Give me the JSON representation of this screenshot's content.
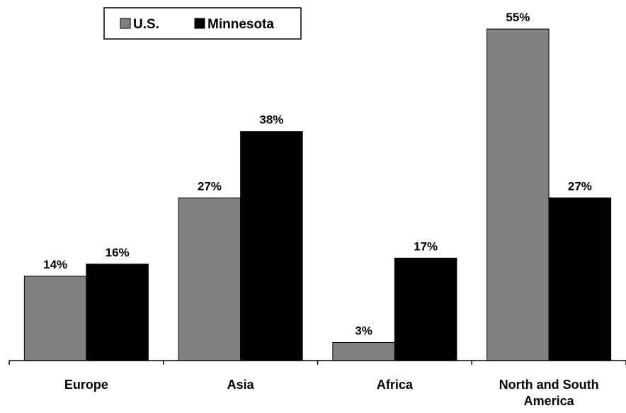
{
  "chart_data": {
    "type": "bar",
    "title": "",
    "xlabel": "",
    "ylabel": "",
    "ylim": [
      0,
      55
    ],
    "grid": false,
    "legend_position": "top-left",
    "value_suffix": "%",
    "categories": [
      "Europe",
      "Asia",
      "Africa",
      "North and South America"
    ],
    "series": [
      {
        "name": "U.S.",
        "color": "#808080",
        "values": [
          14,
          27,
          3,
          55
        ],
        "labels": [
          "14%",
          "27%",
          "3%",
          "55%"
        ]
      },
      {
        "name": "Minnesota",
        "color": "#000000",
        "values": [
          16,
          38,
          17,
          27
        ],
        "labels": [
          "16%",
          "38%",
          "17%",
          "27%"
        ]
      }
    ]
  }
}
